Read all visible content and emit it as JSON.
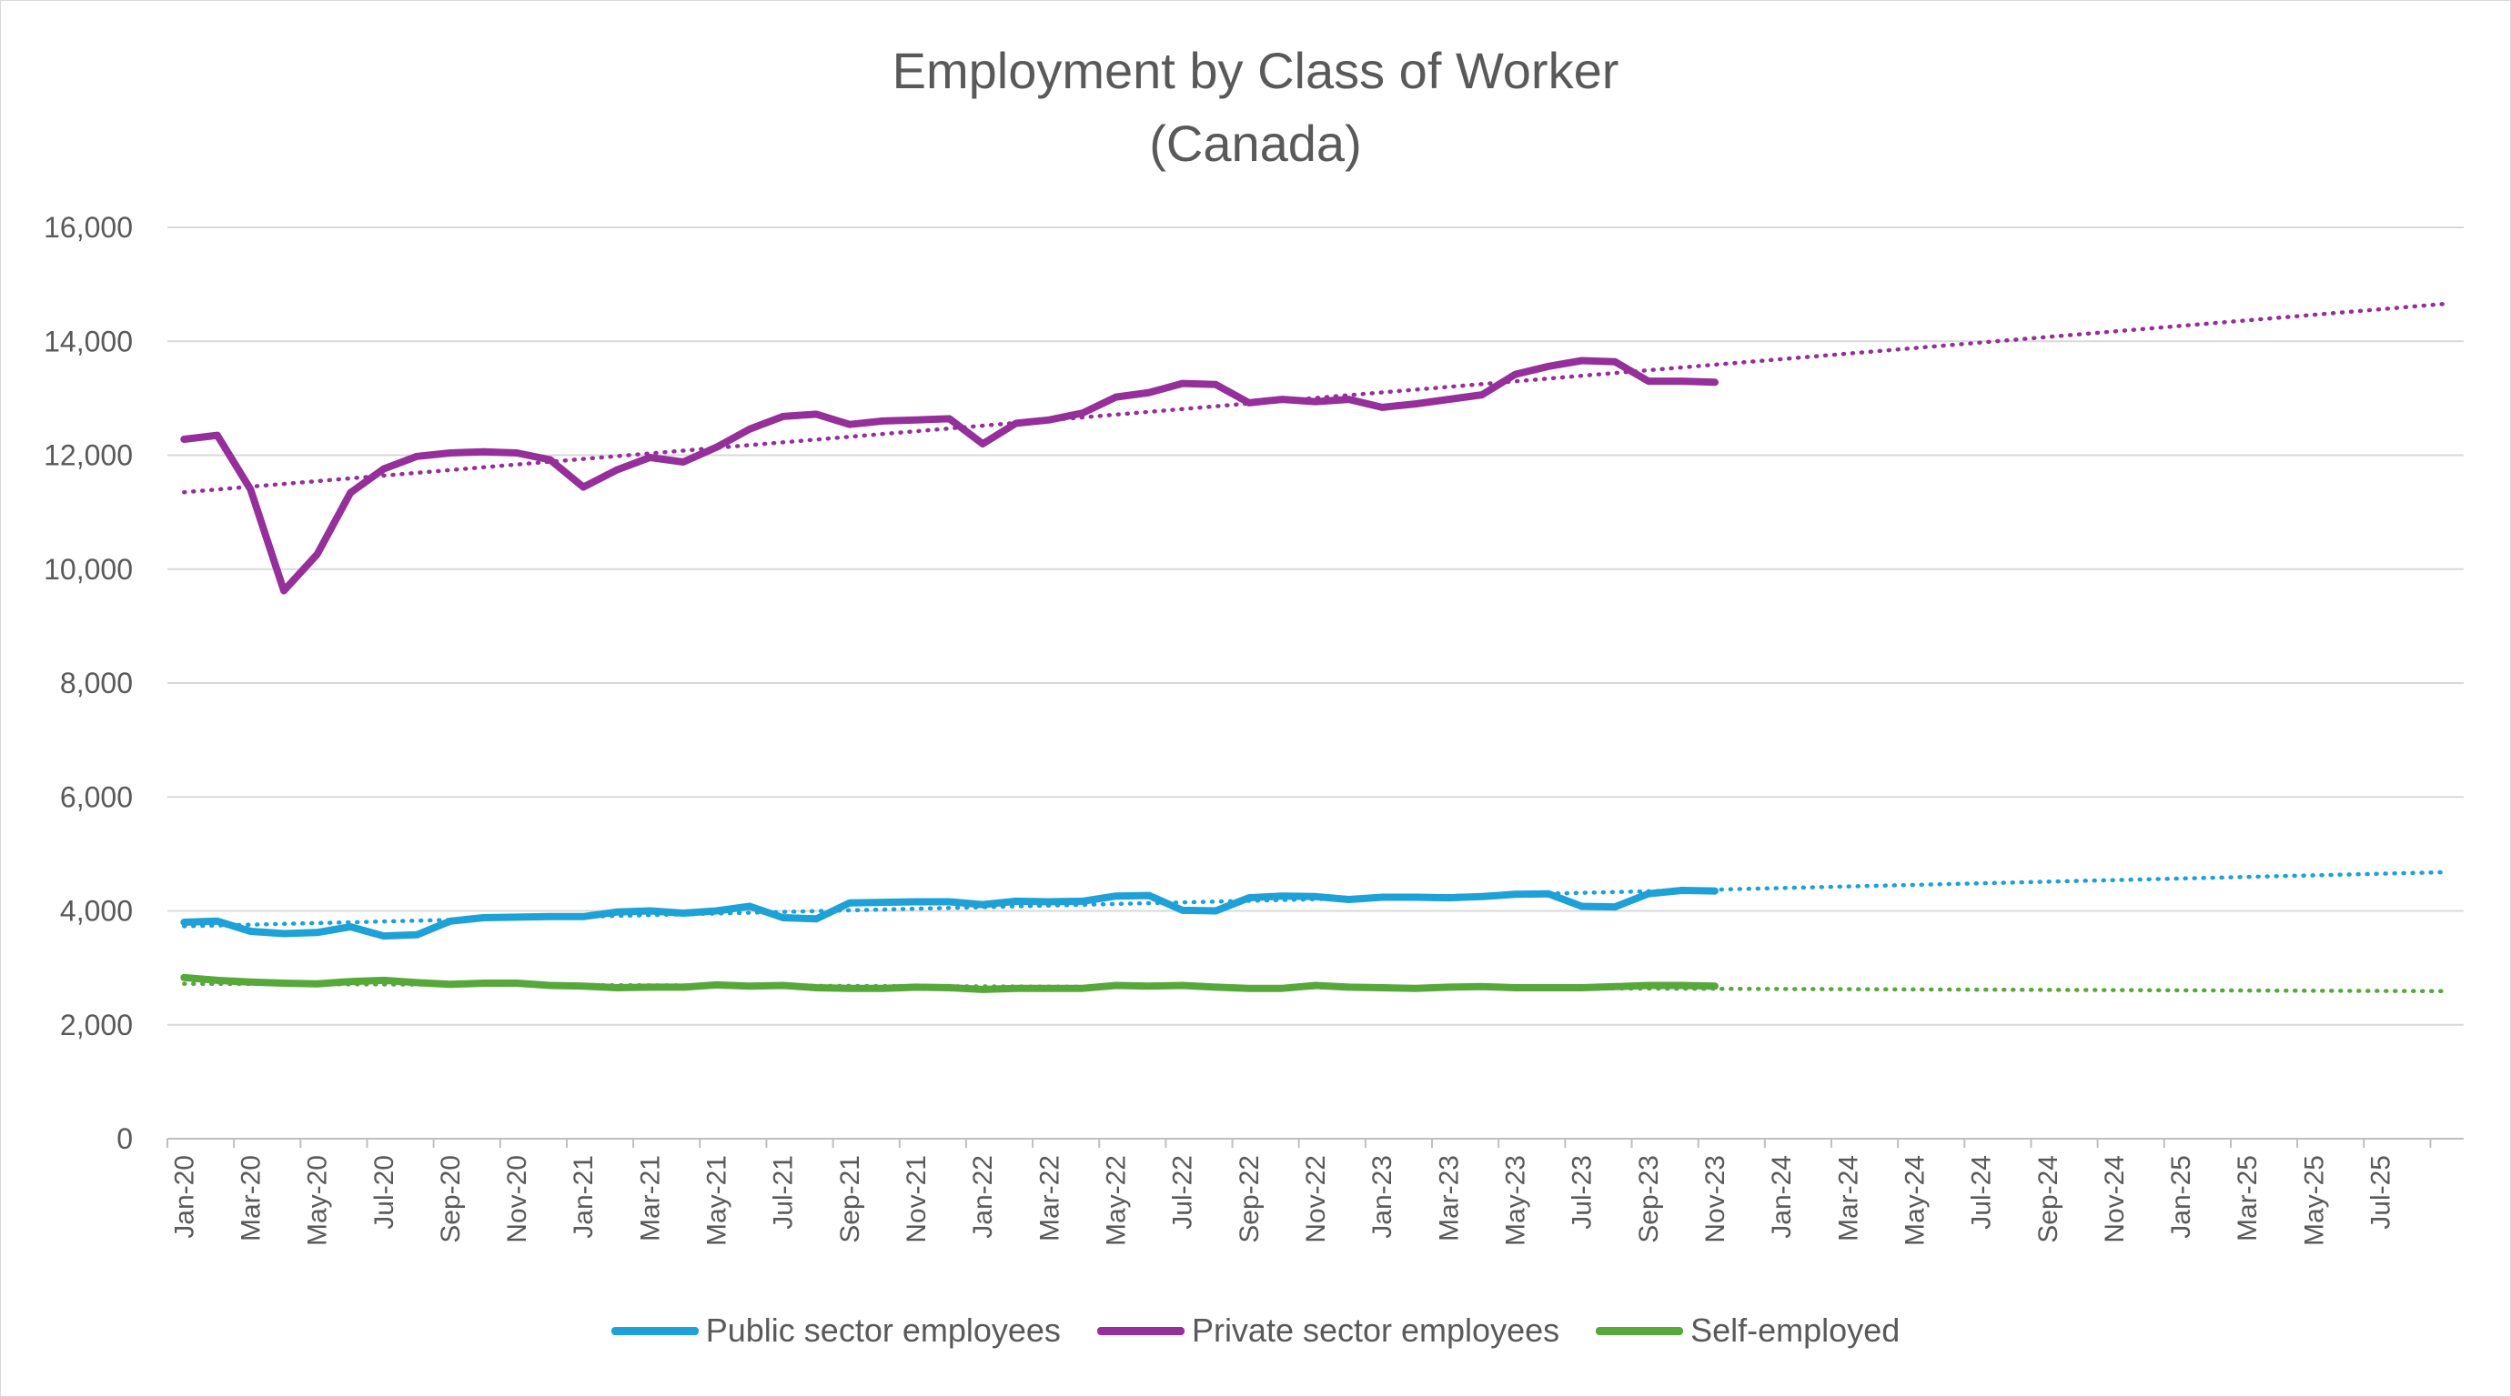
{
  "chart_data": {
    "type": "line",
    "title": "Employment by Class of Worker",
    "subtitle": "(Canada)",
    "ylim": [
      0,
      16000
    ],
    "yticks": [
      "0",
      "2,000",
      "4,000",
      "6,000",
      "8,000",
      "10,000",
      "12,000",
      "14,000",
      "16,000"
    ],
    "ytick_values": [
      0,
      2000,
      4000,
      6000,
      8000,
      10000,
      12000,
      14000,
      16000
    ],
    "x_labels": [
      "Jan-20",
      "Mar-20",
      "May-20",
      "Jul-20",
      "Sep-20",
      "Nov-20",
      "Jan-21",
      "Mar-21",
      "May-21",
      "Jul-21",
      "Sep-21",
      "Nov-21",
      "Jan-22",
      "Mar-22",
      "May-22",
      "Jul-22",
      "Sep-22",
      "Nov-22",
      "Jan-23",
      "Mar-23",
      "May-23",
      "Jul-23",
      "Sep-23",
      "Nov-23",
      "Jan-24",
      "Mar-24",
      "May-24",
      "Jul-24",
      "Sep-24",
      "Nov-24",
      "Jan-25",
      "Mar-25",
      "May-25",
      "Jul-25"
    ],
    "x_range": [
      "Jan-20",
      "Sep-25"
    ],
    "grid": true,
    "legend_position": "bottom",
    "series": [
      {
        "name": "Public sector employees",
        "color": "#1ea1d6",
        "start": "Jan-20",
        "values": [
          3800,
          3820,
          3640,
          3600,
          3620,
          3720,
          3560,
          3580,
          3820,
          3880,
          3890,
          3900,
          3900,
          3980,
          4000,
          3960,
          4000,
          4080,
          3880,
          3860,
          4140,
          4150,
          4160,
          4160,
          4110,
          4170,
          4160,
          4170,
          4260,
          4270,
          4010,
          4000,
          4230,
          4260,
          4250,
          4200,
          4240,
          4240,
          4230,
          4250,
          4290,
          4300,
          4080,
          4070,
          4300,
          4360,
          4350
        ],
        "trend_end": "Sep-25",
        "trend": [
          3730,
          4680
        ]
      },
      {
        "name": "Private sector employees",
        "color": "#952f9a",
        "start": "Jan-20",
        "values": [
          12280,
          12350,
          11400,
          9620,
          10260,
          11340,
          11760,
          11980,
          12040,
          12060,
          12040,
          11920,
          11440,
          11740,
          11960,
          11880,
          12140,
          12460,
          12680,
          12720,
          12540,
          12600,
          12620,
          12640,
          12200,
          12560,
          12620,
          12740,
          13020,
          13100,
          13260,
          13240,
          12920,
          12980,
          12940,
          12980,
          12840,
          12900,
          12980,
          13060,
          13420,
          13560,
          13660,
          13640,
          13300,
          13300,
          13280
        ],
        "trend_end": "Sep-25",
        "trend": [
          11350,
          14660
        ]
      },
      {
        "name": "Self-employed",
        "color": "#57a83a",
        "start": "Jan-20",
        "values": [
          2830,
          2780,
          2750,
          2730,
          2720,
          2760,
          2780,
          2740,
          2710,
          2730,
          2730,
          2690,
          2680,
          2650,
          2660,
          2660,
          2700,
          2680,
          2690,
          2650,
          2640,
          2640,
          2660,
          2650,
          2620,
          2640,
          2640,
          2640,
          2690,
          2680,
          2690,
          2660,
          2640,
          2640,
          2690,
          2660,
          2650,
          2640,
          2660,
          2670,
          2650,
          2650,
          2650,
          2670,
          2690,
          2690,
          2680
        ],
        "trend_end": "Sep-25",
        "trend": [
          2720,
          2590
        ]
      }
    ]
  }
}
